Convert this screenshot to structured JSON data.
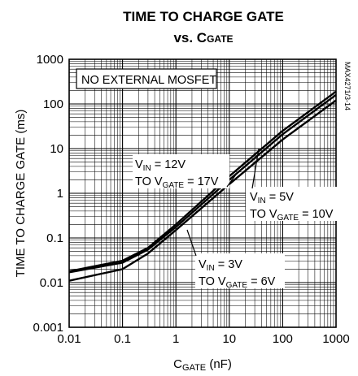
{
  "chart_data": {
    "type": "line",
    "title": "TIME TO CHARGE GATE",
    "subtitle": {
      "prefix": "vs. C",
      "sub": "GATE"
    },
    "xlabel": {
      "main": "C",
      "sub": "GATE",
      "suffix": " (nF)"
    },
    "ylabel": "TIME TO CHARGE GATE (ms)",
    "x_scale": "log",
    "y_scale": "log",
    "xlim": [
      0.01,
      1000
    ],
    "ylim": [
      0.001,
      1000
    ],
    "x_ticks": [
      "0.01",
      "0.1",
      "1",
      "10",
      "100",
      "1000"
    ],
    "y_ticks": [
      "0.001",
      "0.01",
      "0.1",
      "1",
      "10",
      "100",
      "1000"
    ],
    "grid": true,
    "annotation_box": "NO EXTERNAL MOSFET",
    "side_code": "MAX4271/3-14",
    "series": [
      {
        "label_lines": [
          {
            "p": "V",
            "s": "IN",
            "t": " = 12V"
          },
          {
            "p": "TO V",
            "s": "GATE",
            "t": " = 17V"
          }
        ],
        "x": [
          0.01,
          0.1,
          0.3,
          1,
          10,
          100,
          1000
        ],
        "y": [
          0.018,
          0.031,
          0.06,
          0.2,
          2.4,
          25,
          190
        ]
      },
      {
        "label_lines": [
          {
            "p": "V",
            "s": "IN",
            "t": " = 5V"
          },
          {
            "p": "TO V",
            "s": "GATE",
            "t": " = 10V"
          }
        ],
        "x": [
          0.01,
          0.1,
          0.3,
          1,
          10,
          100,
          1000
        ],
        "y": [
          0.017,
          0.028,
          0.055,
          0.175,
          2.0,
          21,
          160
        ]
      },
      {
        "label_lines": [
          {
            "p": "V",
            "s": "IN",
            "t": " = 3V"
          },
          {
            "p": "TO V",
            "s": "GATE",
            "t": " = 6V"
          }
        ],
        "x": [
          0.01,
          0.1,
          0.3,
          1,
          10,
          100,
          1000
        ],
        "y": [
          0.011,
          0.02,
          0.045,
          0.15,
          1.6,
          16,
          120
        ]
      }
    ]
  }
}
